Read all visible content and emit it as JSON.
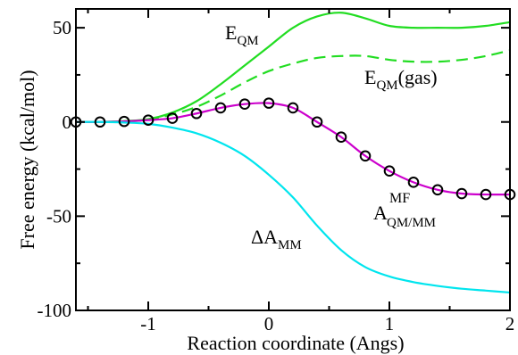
{
  "chart_data": {
    "type": "line",
    "xlabel": "Reaction coordinate (Angs)",
    "ylabel": "Free energy  (kcal/mol)",
    "xlim": [
      -1.6,
      2.0
    ],
    "ylim": [
      -100,
      60
    ],
    "x_ticks": [
      -1,
      0,
      1,
      2
    ],
    "x_tick_labels": [
      "-1",
      "0",
      "1",
      "2"
    ],
    "y_ticks": [
      -100,
      -50,
      0,
      50
    ],
    "y_tick_labels": [
      "-100",
      "-50",
      "0",
      "50"
    ],
    "grid": false,
    "legend": "none",
    "series": [
      {
        "color": "#22dd22",
        "style": "solid",
        "x": [
          -1.6,
          -1.4,
          -1.2,
          -1.0,
          -0.8,
          -0.6,
          -0.4,
          -0.2,
          0.0,
          0.2,
          0.4,
          0.6,
          0.8,
          1.0,
          1.2,
          1.4,
          1.6,
          1.8,
          2.0
        ],
        "y": [
          0,
          0,
          0.5,
          1.5,
          5,
          11,
          20,
          30,
          40,
          50,
          56,
          58,
          55,
          51,
          50,
          50,
          50,
          51,
          53
        ]
      },
      {
        "color": "#22dd22",
        "style": "dashed",
        "x": [
          -1.6,
          -1.4,
          -1.2,
          -1.0,
          -0.8,
          -0.6,
          -0.4,
          -0.2,
          0.0,
          0.2,
          0.4,
          0.6,
          0.8,
          1.0,
          1.2,
          1.4,
          1.6,
          1.8,
          2.0
        ],
        "y": [
          0,
          0,
          0.3,
          1.2,
          4,
          8,
          14,
          21,
          27,
          31,
          34,
          35,
          35,
          33,
          32,
          32,
          33,
          35,
          38
        ]
      },
      {
        "color": "#cc00cc",
        "style": "solid",
        "markers": "open-circle",
        "x": [
          -1.6,
          -1.4,
          -1.2,
          -1.0,
          -0.8,
          -0.6,
          -0.4,
          -0.2,
          0.0,
          0.2,
          0.4,
          0.6,
          0.8,
          1.0,
          1.2,
          1.4,
          1.6,
          1.8,
          2.0
        ],
        "y": [
          0,
          0,
          0.3,
          1,
          2,
          4.5,
          7.5,
          9.5,
          10,
          7.5,
          0,
          -8,
          -18,
          -26,
          -32,
          -36,
          -38,
          -38.5,
          -38.5
        ]
      },
      {
        "color": "#00e5ee",
        "style": "solid",
        "x": [
          -1.6,
          -1.4,
          -1.2,
          -1.0,
          -0.8,
          -0.6,
          -0.4,
          -0.2,
          0.0,
          0.2,
          0.4,
          0.6,
          0.8,
          1.0,
          1.2,
          1.4,
          1.6,
          1.8,
          2.0
        ],
        "y": [
          0,
          0,
          -0.3,
          -1,
          -3,
          -6,
          -11,
          -18,
          -28,
          -40,
          -55,
          -68,
          -77,
          -82,
          -85,
          -87,
          -88.5,
          -89.5,
          -90.5
        ]
      }
    ],
    "annotations": [
      {
        "main": "E",
        "sub": "QM",
        "sup": ""
      },
      {
        "main": "E",
        "sub": "QM",
        "sup": "",
        "suffix": "(gas)"
      },
      {
        "main": "A",
        "sub": "QM/MM",
        "sup": "MF"
      },
      {
        "main": "ΔA",
        "sub": "MM",
        "sup": ""
      }
    ]
  }
}
